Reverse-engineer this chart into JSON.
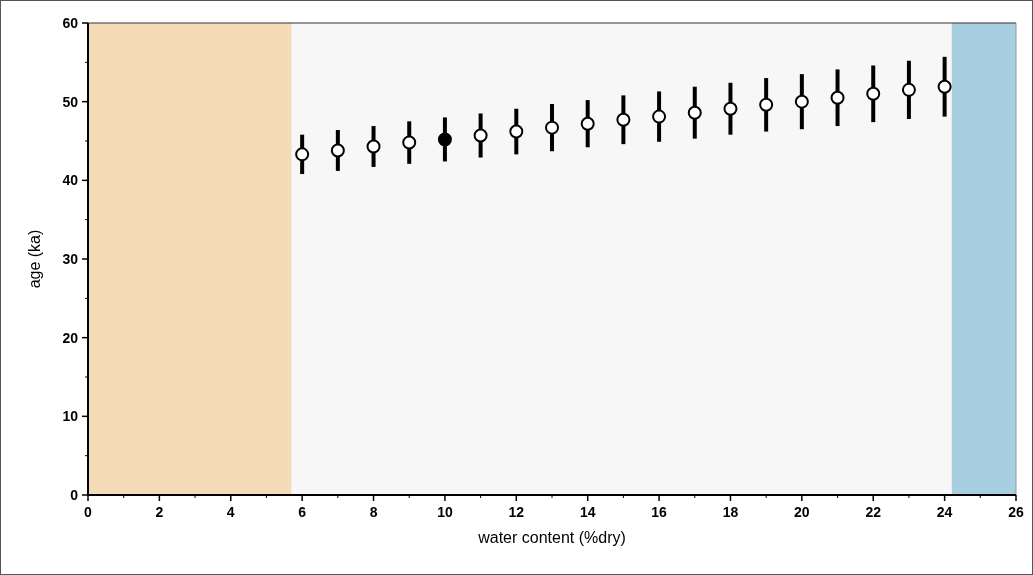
{
  "chart_data": {
    "type": "scatter",
    "xlabel": "water content (%dry)",
    "ylabel": "age (ka)",
    "xlim": [
      0,
      26
    ],
    "xticks": [
      0,
      2,
      4,
      6,
      8,
      10,
      12,
      14,
      16,
      18,
      20,
      22,
      24,
      26
    ],
    "ylim": [
      0,
      60
    ],
    "yticks": [
      0,
      10,
      20,
      30,
      40,
      50,
      60
    ],
    "marker": "circle",
    "grid": false,
    "bands": [
      {
        "axis": "x",
        "from": 0,
        "to": 5.7,
        "color": "#f5dcb8"
      },
      {
        "axis": "x",
        "from": 24.2,
        "to": 26,
        "color": "#a8cfdf"
      }
    ],
    "series": [
      {
        "color": "#ffffff",
        "x": [
          6,
          7,
          8,
          9,
          11,
          12,
          13,
          14,
          15,
          16,
          17,
          18,
          19,
          20,
          21,
          22,
          23,
          24
        ],
        "values": [
          43.3,
          43.8,
          44.3,
          44.8,
          45.7,
          46.2,
          46.7,
          47.2,
          47.7,
          48.1,
          48.6,
          49.1,
          49.6,
          50.0,
          50.5,
          51.0,
          51.5,
          51.9
        ],
        "errors": [
          2.5,
          2.6,
          2.6,
          2.7,
          2.8,
          2.9,
          3.0,
          3.0,
          3.1,
          3.2,
          3.3,
          3.3,
          3.4,
          3.5,
          3.6,
          3.6,
          3.7,
          3.8
        ]
      },
      {
        "color": "#000000",
        "x": [
          10
        ],
        "values": [
          45.2
        ],
        "errors": [
          2.8
        ]
      }
    ]
  }
}
